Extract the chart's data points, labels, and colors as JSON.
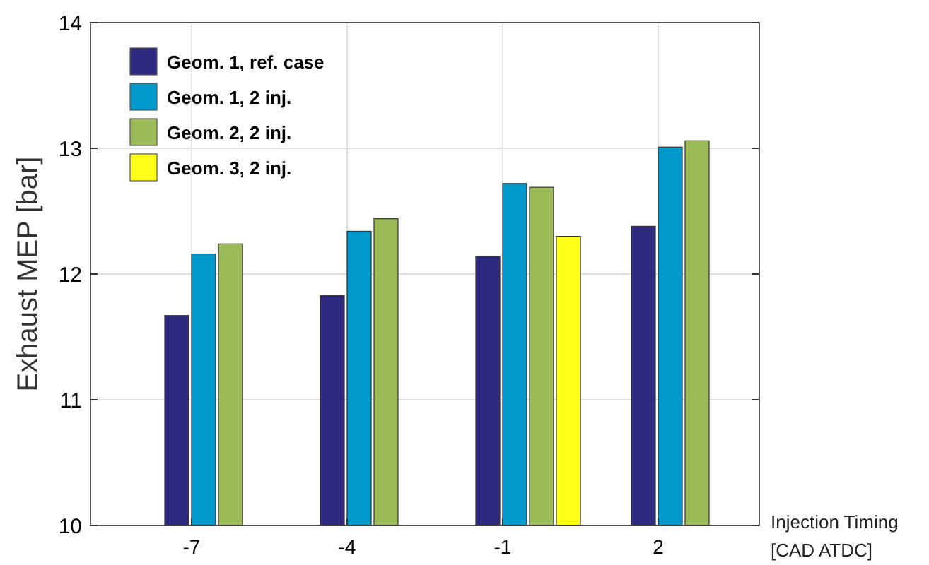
{
  "chart_data": {
    "type": "bar",
    "xlabel": "Injection Timing\n[CAD ATDC]",
    "ylabel": "Exhaust MEP [bar]",
    "categories": [
      "-7",
      "-4",
      "-1",
      "2"
    ],
    "series": [
      {
        "name": "Geom. 1, ref. case",
        "color": "#2e2a80",
        "values": [
          11.67,
          11.83,
          12.14,
          12.38
        ]
      },
      {
        "name": "Geom. 1, 2 inj.",
        "color": "#0099cc",
        "values": [
          12.16,
          12.34,
          12.72,
          13.01
        ]
      },
      {
        "name": "Geom. 2, 2 inj.",
        "color": "#9bbb59",
        "values": [
          12.24,
          12.44,
          12.69,
          13.06
        ]
      },
      {
        "name": "Geom. 3, 2 inj.",
        "color": "#ffff1a",
        "values": [
          null,
          null,
          12.3,
          null
        ]
      }
    ],
    "ylim": [
      10,
      14
    ],
    "yticks": [
      10,
      11,
      12,
      13,
      14
    ],
    "grid": true,
    "legend": "top left"
  }
}
